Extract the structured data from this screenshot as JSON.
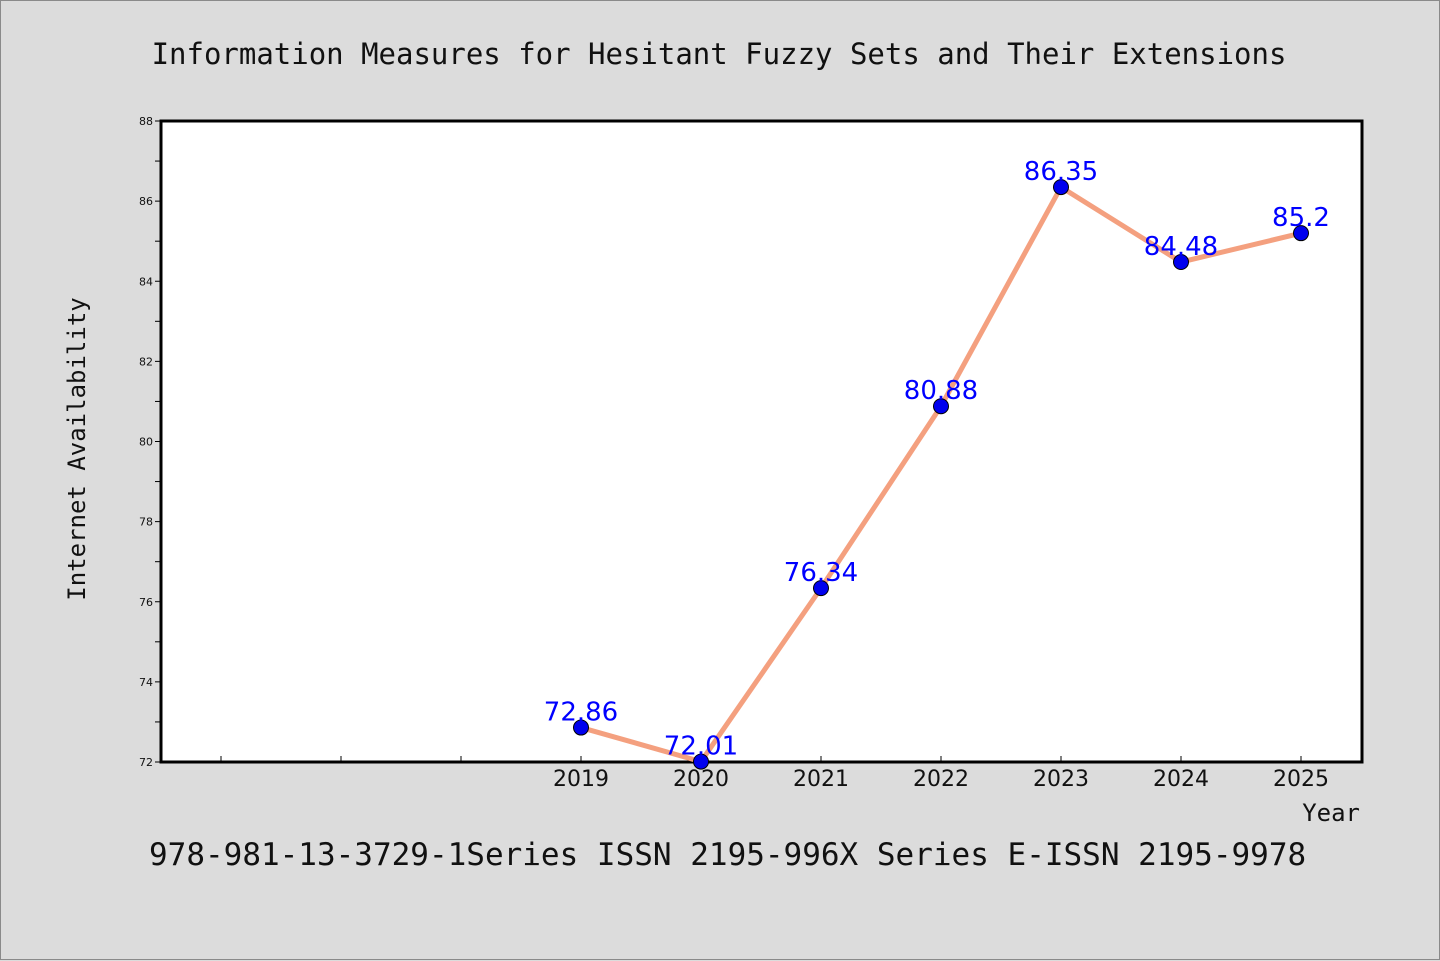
{
  "chart_data": {
    "type": "line",
    "title": "Information Measures for Hesitant Fuzzy Sets and Their Extensions",
    "xlabel": "Year",
    "ylabel": "Internet Availability",
    "footer": "978-981-13-3729-1Series ISSN 2195-996X Series E-ISSN 2195-9978",
    "x": [
      "2019",
      "2020",
      "2021",
      "2022",
      "2023",
      "2024",
      "2025"
    ],
    "series": [
      {
        "values": [
          72.86,
          72.01,
          76.34,
          80.88,
          86.35,
          84.48,
          85.2
        ]
      }
    ],
    "data_labels": [
      "72.86",
      "72.01",
      "76.34",
      "80.88",
      "86.35",
      "84.48",
      "85.2"
    ],
    "ylim": [
      72,
      88
    ],
    "yticks": [
      "72",
      "74",
      "76",
      "78",
      "80",
      "82",
      "84",
      "86",
      "88"
    ],
    "grid": false,
    "legend": "none",
    "colors": {
      "line": "#f4a07f",
      "marker": "#0000ee",
      "label": "#0000ff",
      "background": "#dcdcdc",
      "plot_area": "#ffffff"
    }
  }
}
